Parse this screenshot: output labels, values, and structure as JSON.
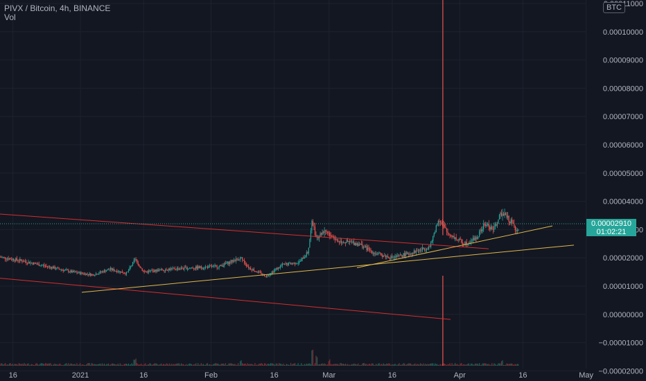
{
  "legend": {
    "title": "PIVX / Bitcoin, 4h, BINANCE",
    "indicator": "Vol"
  },
  "currency_label": "BTC",
  "last_price": {
    "value": "0.00002910",
    "countdown": "01:02:21"
  },
  "colors": {
    "background": "#131722",
    "up": "#26a69a",
    "down": "#ef5350",
    "trendline_red": "#d32f2f",
    "trendline_yellow": "#e0b84a"
  },
  "chart_data": {
    "type": "candlestick",
    "y_axis": {
      "ticks": [
        "0.00011000",
        "0.00010000",
        "0.00009000",
        "0.00008000",
        "0.00007000",
        "0.00006000",
        "0.00005000",
        "0.00004000",
        "0.00003000",
        "0.00002000",
        "0.00001000",
        "0.00000000",
        "−0.00001000",
        "−0.00002000"
      ],
      "tick_values": [
        0.00011,
        0.0001,
        9e-05,
        8e-05,
        7e-05,
        6e-05,
        5e-05,
        4e-05,
        3e-05,
        2e-05,
        1e-05,
        0,
        -1e-05,
        -2e-05
      ]
    },
    "x_axis": {
      "ticks": [
        "16",
        "2021",
        "16",
        "Feb",
        "16",
        "Mar",
        "16",
        "Apr",
        "16",
        "May"
      ]
    },
    "price_path": [
      [
        "Dec 8",
        2.25e-05
      ],
      [
        "Dec 12",
        2.05e-05
      ],
      [
        "Dec 18",
        1.9e-05
      ],
      [
        "Dec 24",
        1.7e-05
      ],
      [
        "Dec 30",
        1.5e-05
      ],
      [
        "Jan 4",
        1.4e-05
      ],
      [
        "Jan 8",
        1.6e-05
      ],
      [
        "Jan 12",
        1.45e-05
      ],
      [
        "Jan 14",
        1.95e-05
      ],
      [
        "Jan 16",
        1.5e-05
      ],
      [
        "Jan 22",
        1.6e-05
      ],
      [
        "Jan 28",
        1.65e-05
      ],
      [
        "Feb 3",
        1.7e-05
      ],
      [
        "Feb 8",
        2e-05
      ],
      [
        "Feb 10",
        1.65e-05
      ],
      [
        "Feb 14",
        1.35e-05
      ],
      [
        "Feb 18",
        1.75e-05
      ],
      [
        "Feb 22",
        1.85e-05
      ],
      [
        "Feb 24",
        2.2e-05
      ],
      [
        "Feb 25",
        3.3e-05
      ],
      [
        "Feb 26",
        2.7e-05
      ],
      [
        "Feb 28",
        3e-05
      ],
      [
        "Mar 3",
        2.6e-05
      ],
      [
        "Mar 8",
        2.5e-05
      ],
      [
        "Mar 12",
        2.15e-05
      ],
      [
        "Mar 16",
        2e-05
      ],
      [
        "Mar 21",
        2.2e-05
      ],
      [
        "Mar 25",
        2.4e-05
      ],
      [
        "Mar 27",
        3.4e-05
      ],
      [
        "Mar 29",
        2.9e-05
      ],
      [
        "Apr 2",
        2.5e-05
      ],
      [
        "Apr 5",
        2.7e-05
      ],
      [
        "Apr 7",
        3.2e-05
      ],
      [
        "Apr 9",
        3e-05
      ],
      [
        "Apr 11",
        3.6e-05
      ],
      [
        "Apr 13",
        3.3e-05
      ],
      [
        "Apr 15",
        2.91e-05
      ]
    ],
    "spike": {
      "date": "Mar 28",
      "high": 0.00012
    }
  }
}
